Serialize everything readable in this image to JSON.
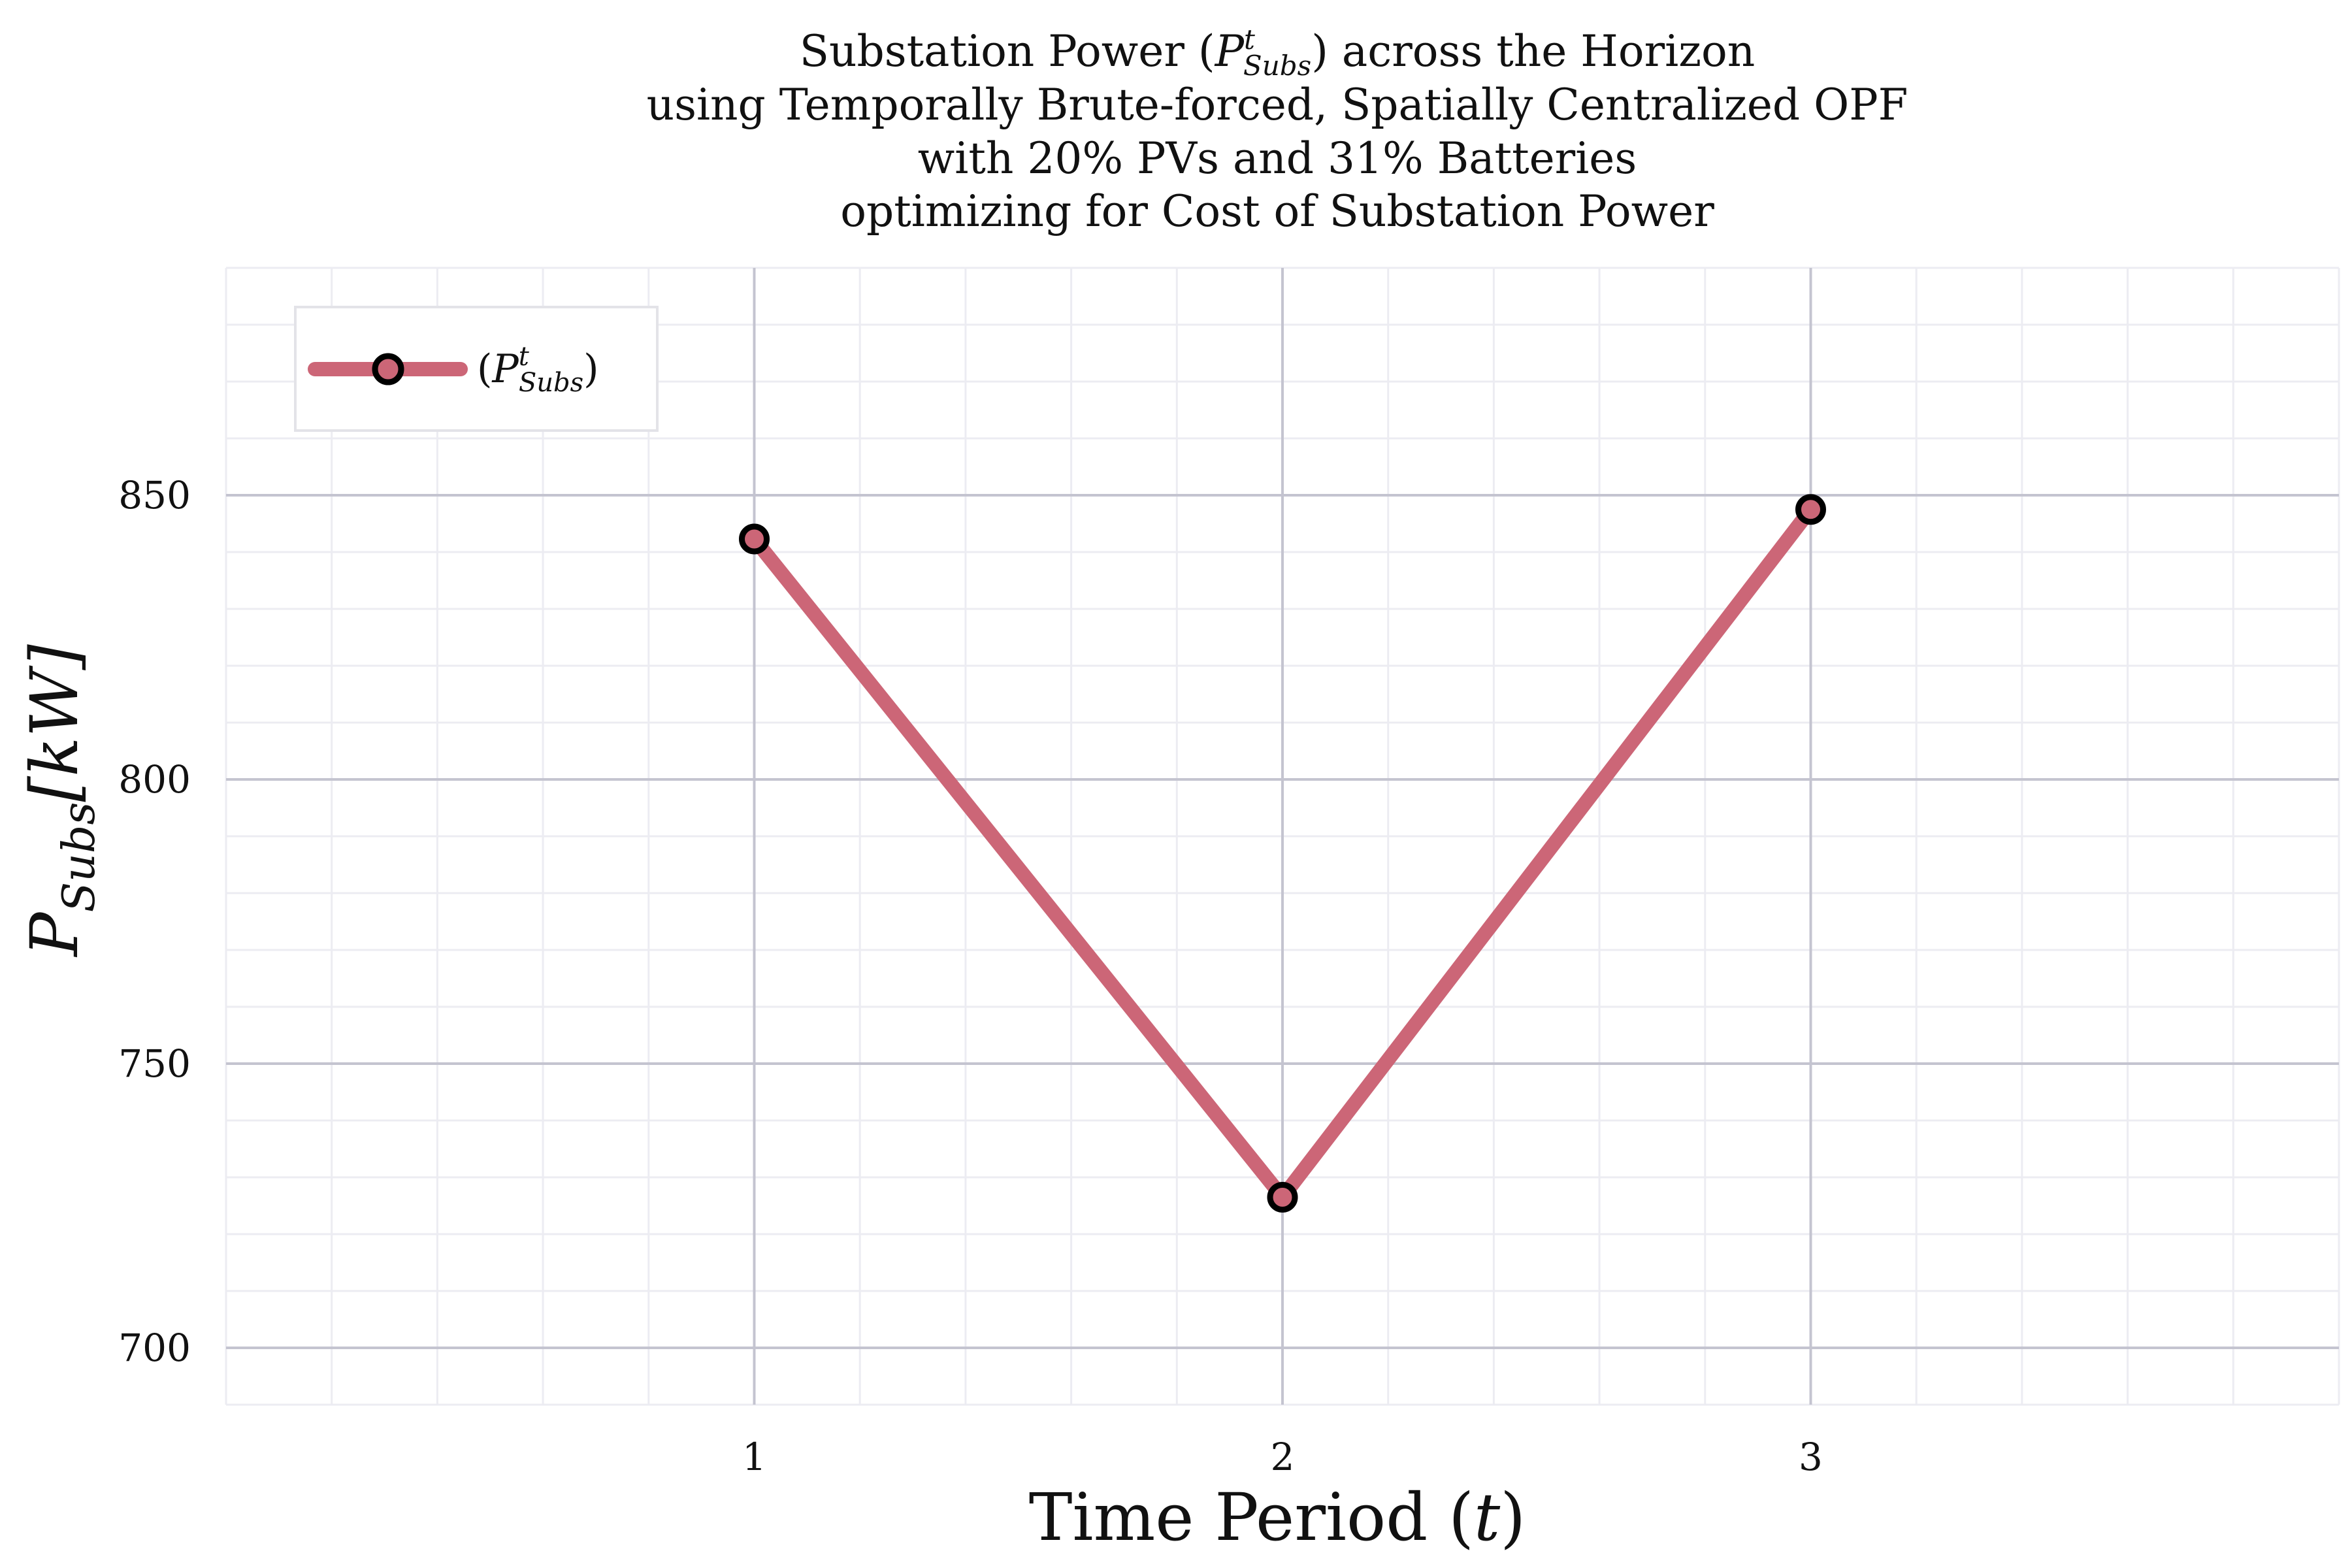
{
  "chart_data": {
    "type": "line",
    "title_lines": [
      "Substation Power (P^t_Subs) across the Horizon",
      "using Temporally Brute-forced, Spatially Centralized OPF",
      "with 20% PVs and 31% Batteries",
      "optimizing for Cost of Substation Power"
    ],
    "title_parts": {
      "line1_pre": "Substation Power (",
      "line1_var": "P",
      "line1_sup": "t",
      "line1_sub": "Subs",
      "line1_post": ") across the Horizon",
      "line2": "using Temporally Brute-forced, Spatially Centralized OPF",
      "line3": "with 20% PVs and 31% Batteries",
      "line4": "optimizing for Cost of Substation Power"
    },
    "xlabel": {
      "text": "Time Period (",
      "var": "t",
      "close": ")"
    },
    "ylabel": {
      "var": "P",
      "sub": "Subs",
      "unit": "[kW]"
    },
    "xlim": [
      0,
      4
    ],
    "ylim": [
      690,
      890
    ],
    "xticks": [
      1,
      2,
      3
    ],
    "yticks": [
      700,
      750,
      800,
      850
    ],
    "grid": true,
    "legend_position": "top-left",
    "series": [
      {
        "name": "(P^t_Subs)",
        "legend_parts": {
          "open": "(",
          "var": "P",
          "sup": "t",
          "sub": "Subs",
          "close": ")"
        },
        "color": "#cc6677",
        "marker_edge": "#000000",
        "x": [
          1,
          2,
          3
        ],
        "values": [
          842.3,
          726.5,
          847.5
        ]
      }
    ]
  }
}
